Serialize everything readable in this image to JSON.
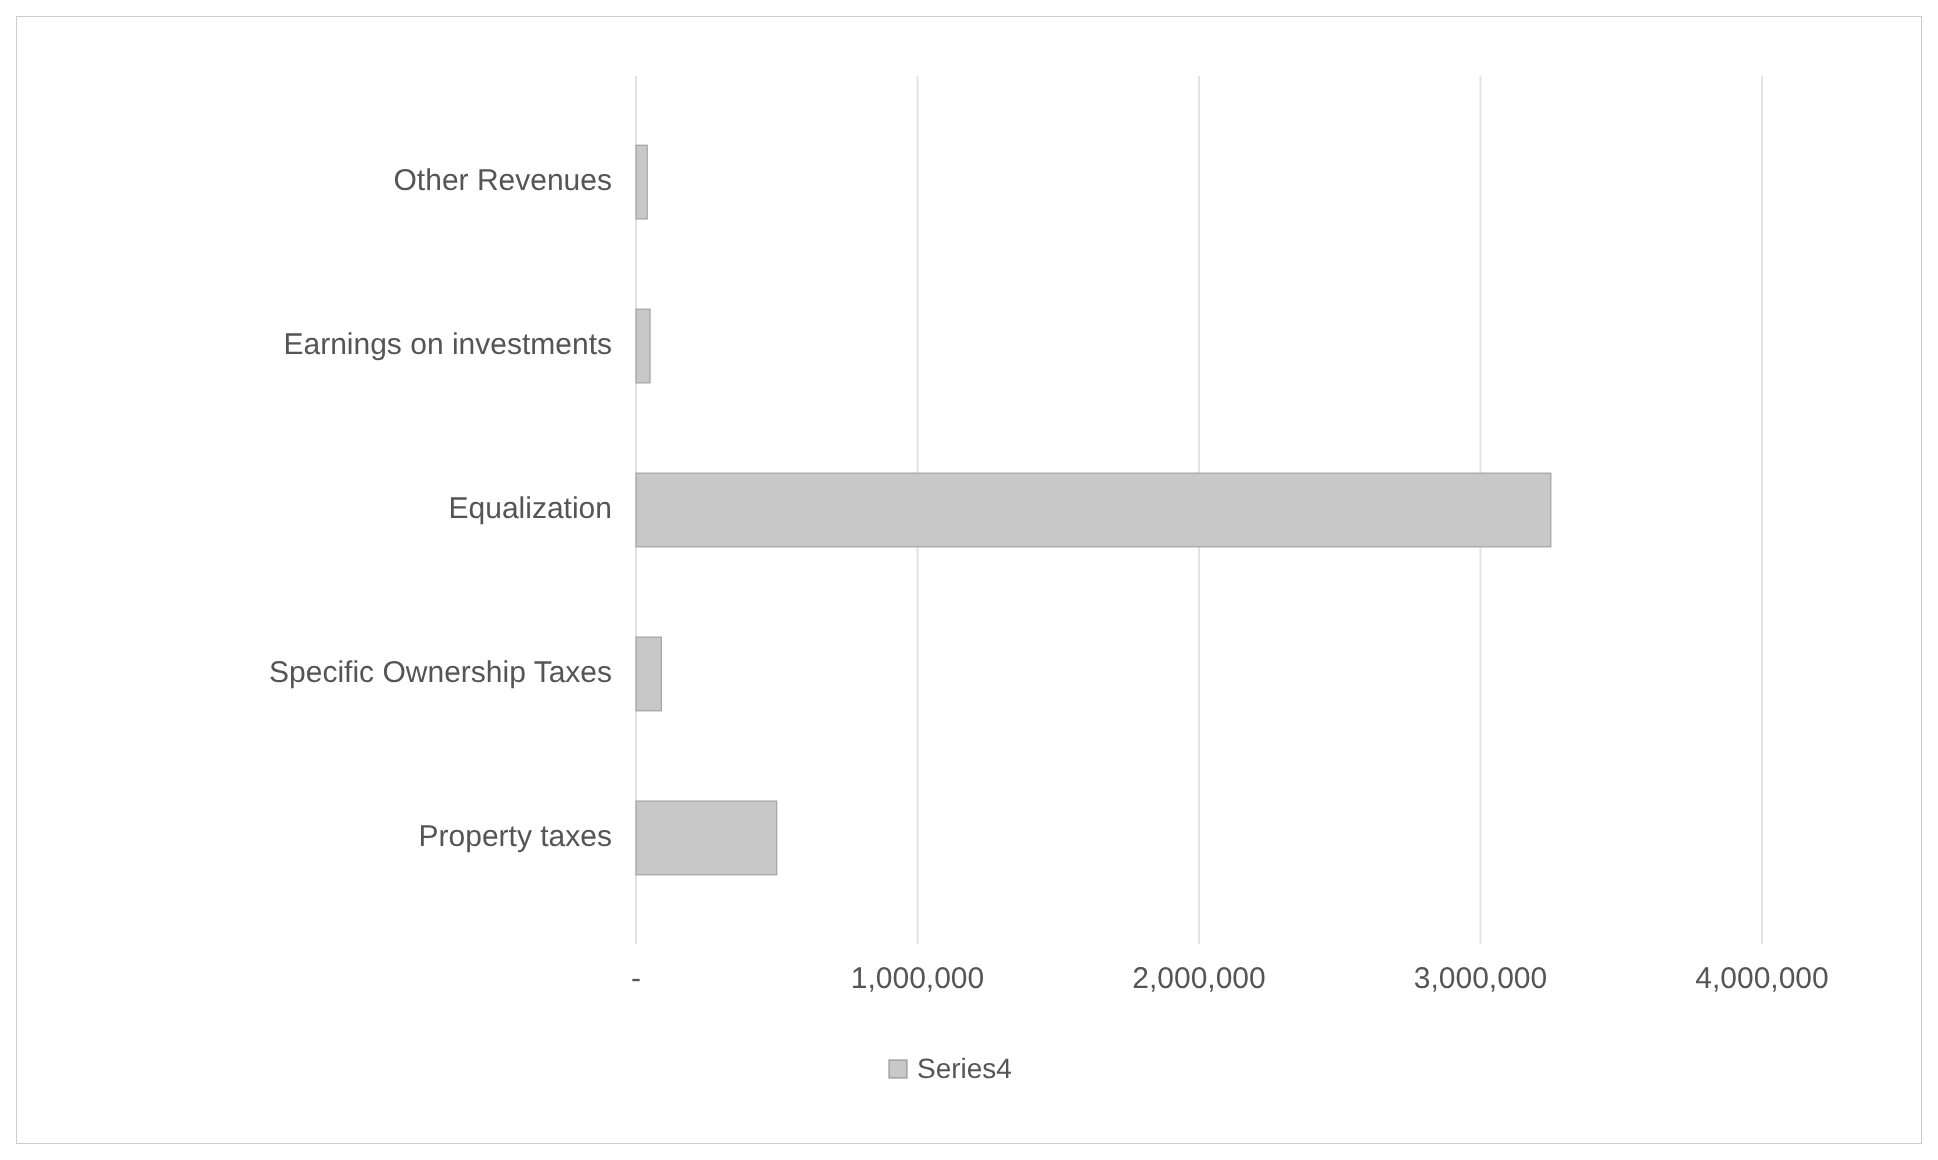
{
  "chart_data": {
    "type": "bar",
    "orientation": "horizontal",
    "categories": [
      "Other Revenues",
      "Earnings on investments",
      "Equalization",
      "Specific Ownership Taxes",
      "Property taxes"
    ],
    "series": [
      {
        "name": "Series4",
        "color": "#c8c8c8",
        "values": [
          40000,
          50000,
          3250000,
          90000,
          500000
        ]
      }
    ],
    "xlim": [
      0,
      4000000
    ],
    "xticks": [
      {
        "value": 0,
        "label": "-"
      },
      {
        "value": 1000000,
        "label": "1,000,000"
      },
      {
        "value": 2000000,
        "label": "2,000,000"
      },
      {
        "value": 3000000,
        "label": "3,000,000"
      },
      {
        "value": 4000000,
        "label": "4,000,000"
      }
    ],
    "grid": "x",
    "legend": "bottom"
  }
}
